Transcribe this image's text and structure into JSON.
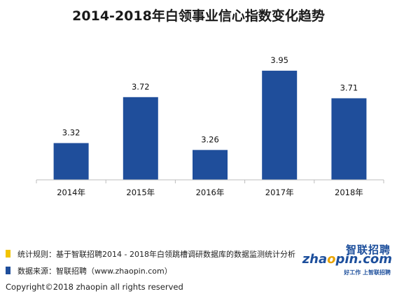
{
  "chart_data": {
    "type": "bar",
    "title": "2014-2018年白领事业信心指数变化趋势",
    "categories": [
      "2014年",
      "2015年",
      "2016年",
      "2017年",
      "2018年"
    ],
    "values": [
      3.32,
      3.72,
      3.26,
      3.95,
      3.71
    ],
    "value_labels": [
      "3.32",
      "3.72",
      "3.26",
      "3.95",
      "3.71"
    ],
    "ylim": [
      3.0,
      4.2
    ],
    "grid": false,
    "bar_color": "#1f4e9b"
  },
  "footer": {
    "rule_text": "统计规则：基于智联招聘2014 - 2018年白领跳槽调研数据库的数据监测统计分析",
    "rule_color": "#f2c400",
    "source_text": "数据来源：智联招聘（www.zhaopin.com）",
    "source_color": "#1f4e9b",
    "copyright": "Copyright©2018 zhaopin all rights reserved"
  },
  "logo": {
    "cn": "智联招聘",
    "en_prefix": "zha",
    "en_o": "o",
    "en_suffix": "pin.com",
    "tagline": "好工作  上智联招聘"
  }
}
